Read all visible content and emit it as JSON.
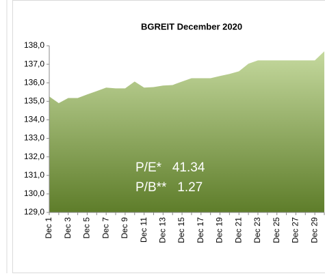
{
  "chart_data": {
    "type": "area",
    "title": "BGREIT December 2020",
    "categories": [
      "Dec 1",
      null,
      "Dec 3",
      null,
      "Dec 5",
      null,
      "Dec 7",
      null,
      "Dec 9",
      null,
      "Dec 11",
      null,
      "Dec 13",
      null,
      "Dec 15",
      null,
      "Dec 17",
      null,
      "Dec 19",
      null,
      "Dec 21",
      null,
      "Dec 23",
      null,
      "Dec 25",
      null,
      "Dec 27",
      null,
      "Dec 29",
      null
    ],
    "values": [
      135.26,
      134.9,
      135.18,
      135.18,
      135.37,
      135.55,
      135.74,
      135.7,
      135.7,
      136.07,
      135.74,
      135.77,
      135.85,
      135.88,
      136.07,
      136.25,
      136.25,
      136.25,
      136.37,
      136.48,
      136.62,
      137.03,
      137.21,
      137.21,
      137.21,
      137.21,
      137.21,
      137.21,
      137.21,
      137.7
    ],
    "color_top": "#c5d99e",
    "color_bottom": "#5e7d2a",
    "ylim": [
      129,
      138
    ],
    "yticks": [
      {
        "value": 129,
        "label": "129,0"
      },
      {
        "value": 130,
        "label": "130,0"
      },
      {
        "value": 131,
        "label": "131,0"
      },
      {
        "value": 132,
        "label": "132,0"
      },
      {
        "value": 133,
        "label": "133,0"
      },
      {
        "value": 134,
        "label": "134,0"
      },
      {
        "value": 135,
        "label": "135,0"
      },
      {
        "value": 136,
        "label": "136,0"
      },
      {
        "value": 137,
        "label": "137,0"
      },
      {
        "value": 138,
        "label": "138,0"
      }
    ],
    "annotations": [
      "P/E*   41.34",
      "P/B**   1.27"
    ]
  }
}
